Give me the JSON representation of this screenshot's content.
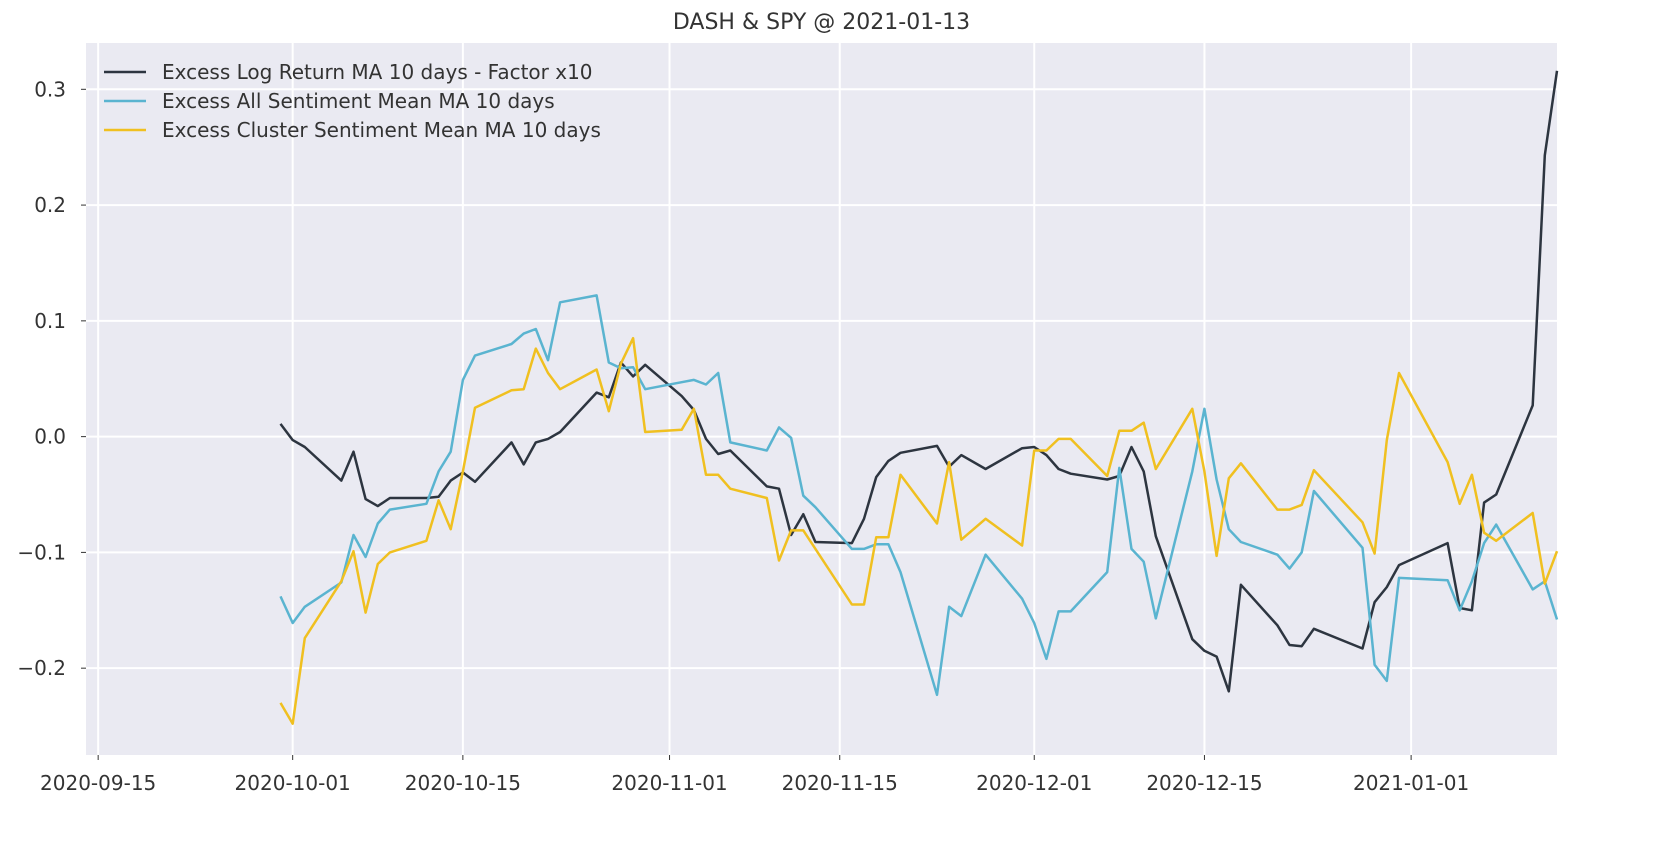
{
  "chart_data": {
    "type": "line",
    "title": "DASH & SPY @ 2021-01-13",
    "xlabel": "",
    "ylabel": "",
    "x_axis": "date",
    "xlim": [
      "2020-09-14",
      "2021-01-13"
    ],
    "ylim": [
      -0.275,
      0.34
    ],
    "grid": true,
    "legend_position": "top-left",
    "x_tick_labels": [
      "2020-09-15",
      "2020-10-01",
      "2020-10-15",
      "2020-11-01",
      "2020-11-15",
      "2020-12-01",
      "2020-12-15",
      "2021-01-01"
    ],
    "y_ticks": [
      -0.2,
      -0.1,
      0.0,
      0.1,
      0.2,
      0.3
    ],
    "y_tick_labels": [
      "−0.2",
      "−0.1",
      "0.0",
      "0.1",
      "0.2",
      "0.3"
    ],
    "colors": {
      "background": "#eaeaf2",
      "grid": "#ffffff",
      "series": [
        "#2d3540",
        "#5ab4d0",
        "#f0c020"
      ]
    },
    "series": [
      {
        "name": "Excess Log Return MA 10 days - Factor x10",
        "color": "#2d3540",
        "points": [
          [
            "2020-09-30",
            0.011
          ],
          [
            "2020-10-01",
            -0.003
          ],
          [
            "2020-10-02",
            -0.009
          ],
          [
            "2020-10-05",
            -0.038
          ],
          [
            "2020-10-06",
            -0.013
          ],
          [
            "2020-10-07",
            -0.054
          ],
          [
            "2020-10-08",
            -0.06
          ],
          [
            "2020-10-09",
            -0.053
          ],
          [
            "2020-10-12",
            -0.053
          ],
          [
            "2020-10-13",
            -0.052
          ],
          [
            "2020-10-14",
            -0.038
          ],
          [
            "2020-10-15",
            -0.031
          ],
          [
            "2020-10-16",
            -0.039
          ],
          [
            "2020-10-19",
            -0.005
          ],
          [
            "2020-10-20",
            -0.024
          ],
          [
            "2020-10-21",
            -0.005
          ],
          [
            "2020-10-22",
            -0.002
          ],
          [
            "2020-10-23",
            0.004
          ],
          [
            "2020-10-26",
            0.038
          ],
          [
            "2020-10-27",
            0.034
          ],
          [
            "2020-10-28",
            0.064
          ],
          [
            "2020-10-29",
            0.052
          ],
          [
            "2020-10-30",
            0.062
          ],
          [
            "2020-11-02",
            0.035
          ],
          [
            "2020-11-03",
            0.023
          ],
          [
            "2020-11-04",
            -0.002
          ],
          [
            "2020-11-05",
            -0.015
          ],
          [
            "2020-11-06",
            -0.012
          ],
          [
            "2020-11-09",
            -0.043
          ],
          [
            "2020-11-10",
            -0.045
          ],
          [
            "2020-11-11",
            -0.085
          ],
          [
            "2020-11-12",
            -0.067
          ],
          [
            "2020-11-13",
            -0.091
          ],
          [
            "2020-11-16",
            -0.092
          ],
          [
            "2020-11-17",
            -0.071
          ],
          [
            "2020-11-18",
            -0.035
          ],
          [
            "2020-11-19",
            -0.021
          ],
          [
            "2020-11-20",
            -0.014
          ],
          [
            "2020-11-23",
            -0.008
          ],
          [
            "2020-11-24",
            -0.026
          ],
          [
            "2020-11-25",
            -0.016
          ],
          [
            "2020-11-27",
            -0.028
          ],
          [
            "2020-11-30",
            -0.01
          ],
          [
            "2020-12-01",
            -0.009
          ],
          [
            "2020-12-02",
            -0.016
          ],
          [
            "2020-12-03",
            -0.028
          ],
          [
            "2020-12-04",
            -0.032
          ],
          [
            "2020-12-07",
            -0.037
          ],
          [
            "2020-12-08",
            -0.034
          ],
          [
            "2020-12-09",
            -0.009
          ],
          [
            "2020-12-10",
            -0.03
          ],
          [
            "2020-12-11",
            -0.086
          ],
          [
            "2020-12-14",
            -0.175
          ],
          [
            "2020-12-15",
            -0.185
          ],
          [
            "2020-12-16",
            -0.19
          ],
          [
            "2020-12-17",
            -0.22
          ],
          [
            "2020-12-18",
            -0.128
          ],
          [
            "2020-12-21",
            -0.163
          ],
          [
            "2020-12-22",
            -0.18
          ],
          [
            "2020-12-23",
            -0.181
          ],
          [
            "2020-12-24",
            -0.166
          ],
          [
            "2020-12-28",
            -0.183
          ],
          [
            "2020-12-29",
            -0.143
          ],
          [
            "2020-12-30",
            -0.13
          ],
          [
            "2020-12-31",
            -0.111
          ],
          [
            "2021-01-04",
            -0.092
          ],
          [
            "2021-01-05",
            -0.148
          ],
          [
            "2021-01-06",
            -0.15
          ],
          [
            "2021-01-07",
            -0.057
          ],
          [
            "2021-01-08",
            -0.05
          ],
          [
            "2021-01-11",
            0.027
          ],
          [
            "2021-01-12",
            0.243
          ],
          [
            "2021-01-13",
            0.316
          ]
        ]
      },
      {
        "name": "Excess All Sentiment Mean MA 10 days",
        "color": "#5ab4d0",
        "points": [
          [
            "2020-09-30",
            -0.138
          ],
          [
            "2020-10-01",
            -0.161
          ],
          [
            "2020-10-02",
            -0.147
          ],
          [
            "2020-10-05",
            -0.126
          ],
          [
            "2020-10-06",
            -0.085
          ],
          [
            "2020-10-07",
            -0.104
          ],
          [
            "2020-10-08",
            -0.075
          ],
          [
            "2020-10-09",
            -0.063
          ],
          [
            "2020-10-12",
            -0.058
          ],
          [
            "2020-10-13",
            -0.03
          ],
          [
            "2020-10-14",
            -0.013
          ],
          [
            "2020-10-15",
            0.049
          ],
          [
            "2020-10-16",
            0.07
          ],
          [
            "2020-10-19",
            0.08
          ],
          [
            "2020-10-20",
            0.089
          ],
          [
            "2020-10-21",
            0.093
          ],
          [
            "2020-10-22",
            0.066
          ],
          [
            "2020-10-23",
            0.116
          ],
          [
            "2020-10-26",
            0.122
          ],
          [
            "2020-10-27",
            0.064
          ],
          [
            "2020-10-28",
            0.059
          ],
          [
            "2020-10-29",
            0.06
          ],
          [
            "2020-10-30",
            0.041
          ],
          [
            "2020-11-02",
            0.047
          ],
          [
            "2020-11-03",
            0.049
          ],
          [
            "2020-11-04",
            0.045
          ],
          [
            "2020-11-05",
            0.055
          ],
          [
            "2020-11-06",
            -0.005
          ],
          [
            "2020-11-09",
            -0.012
          ],
          [
            "2020-11-10",
            0.008
          ],
          [
            "2020-11-11",
            -0.001
          ],
          [
            "2020-11-12",
            -0.051
          ],
          [
            "2020-11-13",
            -0.061
          ],
          [
            "2020-11-16",
            -0.097
          ],
          [
            "2020-11-17",
            -0.097
          ],
          [
            "2020-11-18",
            -0.093
          ],
          [
            "2020-11-19",
            -0.093
          ],
          [
            "2020-11-20",
            -0.117
          ],
          [
            "2020-11-23",
            -0.223
          ],
          [
            "2020-11-24",
            -0.147
          ],
          [
            "2020-11-25",
            -0.155
          ],
          [
            "2020-11-27",
            -0.102
          ],
          [
            "2020-11-30",
            -0.14
          ],
          [
            "2020-12-01",
            -0.161
          ],
          [
            "2020-12-02",
            -0.192
          ],
          [
            "2020-12-03",
            -0.151
          ],
          [
            "2020-12-04",
            -0.151
          ],
          [
            "2020-12-07",
            -0.117
          ],
          [
            "2020-12-08",
            -0.027
          ],
          [
            "2020-12-09",
            -0.097
          ],
          [
            "2020-12-10",
            -0.108
          ],
          [
            "2020-12-11",
            -0.157
          ],
          [
            "2020-12-14",
            -0.03
          ],
          [
            "2020-12-15",
            0.024
          ],
          [
            "2020-12-16",
            -0.037
          ],
          [
            "2020-12-17",
            -0.08
          ],
          [
            "2020-12-18",
            -0.091
          ],
          [
            "2020-12-21",
            -0.102
          ],
          [
            "2020-12-22",
            -0.114
          ],
          [
            "2020-12-23",
            -0.1
          ],
          [
            "2020-12-24",
            -0.047
          ],
          [
            "2020-12-28",
            -0.096
          ],
          [
            "2020-12-29",
            -0.197
          ],
          [
            "2020-12-30",
            -0.211
          ],
          [
            "2020-12-31",
            -0.122
          ],
          [
            "2021-01-04",
            -0.124
          ],
          [
            "2021-01-05",
            -0.15
          ],
          [
            "2021-01-06",
            -0.125
          ],
          [
            "2021-01-07",
            -0.092
          ],
          [
            "2021-01-08",
            -0.076
          ],
          [
            "2021-01-11",
            -0.132
          ],
          [
            "2021-01-12",
            -0.125
          ],
          [
            "2021-01-13",
            -0.158
          ]
        ]
      },
      {
        "name": "Excess Cluster Sentiment Mean MA 10 days",
        "color": "#f0c020",
        "points": [
          [
            "2020-09-30",
            -0.23
          ],
          [
            "2020-10-01",
            -0.248
          ],
          [
            "2020-10-02",
            -0.174
          ],
          [
            "2020-10-05",
            -0.125
          ],
          [
            "2020-10-06",
            -0.099
          ],
          [
            "2020-10-07",
            -0.152
          ],
          [
            "2020-10-08",
            -0.11
          ],
          [
            "2020-10-09",
            -0.1
          ],
          [
            "2020-10-12",
            -0.09
          ],
          [
            "2020-10-13",
            -0.055
          ],
          [
            "2020-10-14",
            -0.08
          ],
          [
            "2020-10-15",
            -0.03
          ],
          [
            "2020-10-16",
            0.025
          ],
          [
            "2020-10-19",
            0.04
          ],
          [
            "2020-10-20",
            0.041
          ],
          [
            "2020-10-21",
            0.076
          ],
          [
            "2020-10-22",
            0.055
          ],
          [
            "2020-10-23",
            0.041
          ],
          [
            "2020-10-26",
            0.058
          ],
          [
            "2020-10-27",
            0.022
          ],
          [
            "2020-10-28",
            0.063
          ],
          [
            "2020-10-29",
            0.085
          ],
          [
            "2020-10-30",
            0.004
          ],
          [
            "2020-11-02",
            0.006
          ],
          [
            "2020-11-03",
            0.024
          ],
          [
            "2020-11-04",
            -0.033
          ],
          [
            "2020-11-05",
            -0.033
          ],
          [
            "2020-11-06",
            -0.045
          ],
          [
            "2020-11-09",
            -0.053
          ],
          [
            "2020-11-10",
            -0.107
          ],
          [
            "2020-11-11",
            -0.081
          ],
          [
            "2020-11-12",
            -0.081
          ],
          [
            "2020-11-16",
            -0.145
          ],
          [
            "2020-11-17",
            -0.145
          ],
          [
            "2020-11-18",
            -0.087
          ],
          [
            "2020-11-19",
            -0.087
          ],
          [
            "2020-11-20",
            -0.033
          ],
          [
            "2020-11-23",
            -0.075
          ],
          [
            "2020-11-24",
            -0.022
          ],
          [
            "2020-11-25",
            -0.089
          ],
          [
            "2020-11-27",
            -0.071
          ],
          [
            "2020-11-30",
            -0.094
          ],
          [
            "2020-12-01",
            -0.012
          ],
          [
            "2020-12-02",
            -0.012
          ],
          [
            "2020-12-03",
            -0.002
          ],
          [
            "2020-12-04",
            -0.002
          ],
          [
            "2020-12-07",
            -0.034
          ],
          [
            "2020-12-08",
            0.005
          ],
          [
            "2020-12-09",
            0.005
          ],
          [
            "2020-12-10",
            0.012
          ],
          [
            "2020-12-11",
            -0.028
          ],
          [
            "2020-12-14",
            0.024
          ],
          [
            "2020-12-15",
            -0.03
          ],
          [
            "2020-12-16",
            -0.103
          ],
          [
            "2020-12-17",
            -0.036
          ],
          [
            "2020-12-18",
            -0.023
          ],
          [
            "2020-12-21",
            -0.063
          ],
          [
            "2020-12-22",
            -0.063
          ],
          [
            "2020-12-23",
            -0.059
          ],
          [
            "2020-12-24",
            -0.029
          ],
          [
            "2020-12-28",
            -0.074
          ],
          [
            "2020-12-29",
            -0.101
          ],
          [
            "2020-12-30",
            -0.003
          ],
          [
            "2020-12-31",
            0.055
          ],
          [
            "2021-01-04",
            -0.022
          ],
          [
            "2021-01-05",
            -0.058
          ],
          [
            "2021-01-06",
            -0.033
          ],
          [
            "2021-01-07",
            -0.083
          ],
          [
            "2021-01-08",
            -0.09
          ],
          [
            "2021-01-11",
            -0.066
          ],
          [
            "2021-01-12",
            -0.127
          ],
          [
            "2021-01-13",
            -0.099
          ]
        ]
      }
    ]
  }
}
